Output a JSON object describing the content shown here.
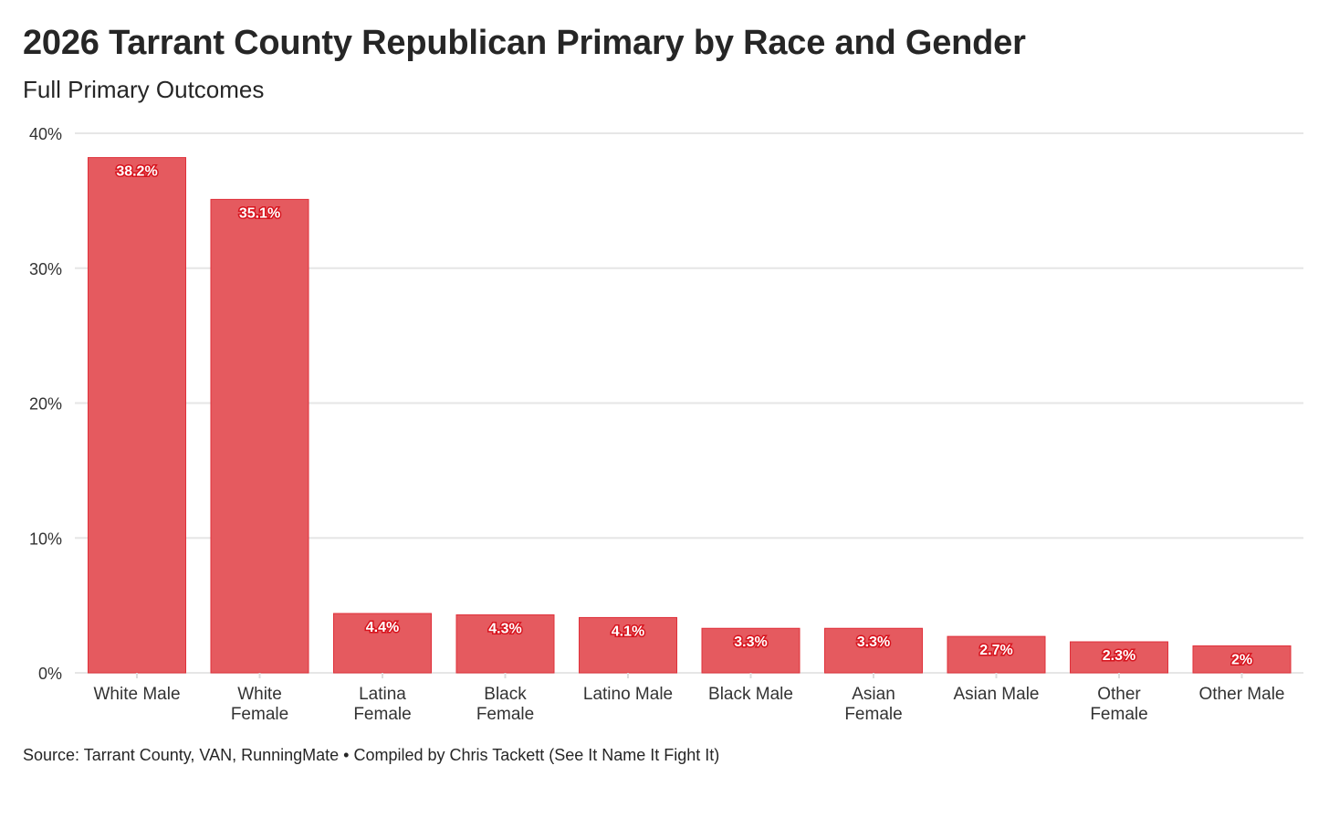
{
  "chart_data": {
    "type": "bar",
    "title": "2026 Tarrant County Republican Primary by Race and Gender",
    "subtitle": "Full Primary Outcomes",
    "source": "Source: Tarrant County, VAN, RunningMate • Compiled by Chris Tackett (See It Name It Fight It)",
    "xlabel": "",
    "ylabel": "",
    "ylim": [
      0,
      40
    ],
    "yticks": [
      0,
      10,
      20,
      30,
      40
    ],
    "ytick_labels": [
      "0%",
      "10%",
      "20%",
      "30%",
      "40%"
    ],
    "grid": true,
    "categories": [
      [
        "White Male"
      ],
      [
        "White",
        "Female"
      ],
      [
        "Latina",
        "Female"
      ],
      [
        "Black",
        "Female"
      ],
      [
        "Latino Male"
      ],
      [
        "Black Male"
      ],
      [
        "Asian",
        "Female"
      ],
      [
        "Asian Male"
      ],
      [
        "Other",
        "Female"
      ],
      [
        "Other Male"
      ]
    ],
    "values": [
      38.2,
      35.1,
      4.4,
      4.3,
      4.1,
      3.3,
      3.3,
      2.7,
      2.3,
      2.0
    ],
    "data_labels": [
      "38.2%",
      "35.1%",
      "4.4%",
      "4.3%",
      "4.1%",
      "3.3%",
      "3.3%",
      "2.7%",
      "2.3%",
      "2%"
    ],
    "bar_color": "#e55a5f",
    "bar_edge_color": "#e0303a"
  }
}
